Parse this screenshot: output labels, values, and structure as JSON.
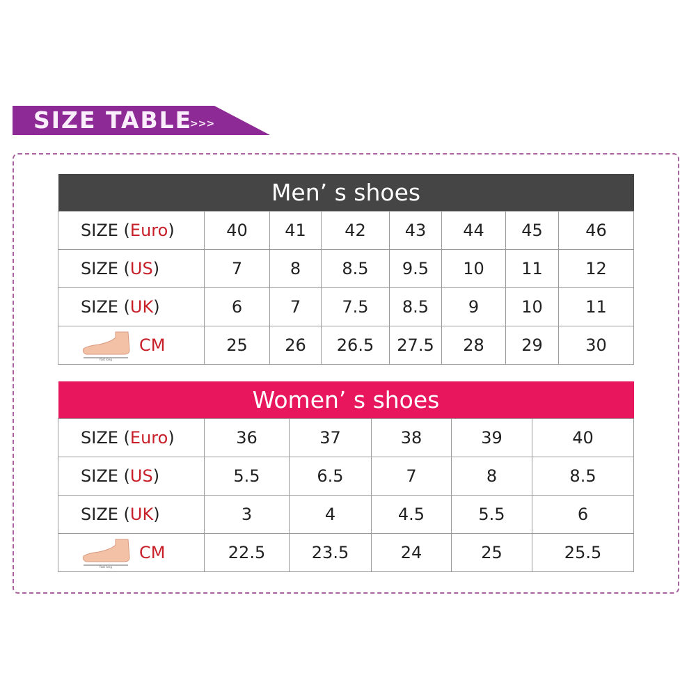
{
  "banner": {
    "title": "SIZE TABLE",
    "arrows": ">>>"
  },
  "colors": {
    "banner": "#8e2a96",
    "men_header": "#454545",
    "women_header": "#e8175d",
    "accent_text": "#c8202a"
  },
  "men": {
    "title": "Men’ s shoes",
    "rows": [
      {
        "prefix": "SIZE (",
        "unit": "Euro",
        "suffix": ")",
        "values": [
          "40",
          "41",
          "42",
          "43",
          "44",
          "45",
          "46"
        ]
      },
      {
        "prefix": "SIZE (",
        "unit": "US",
        "suffix": ")",
        "values": [
          "7",
          "8",
          "8.5",
          "9.5",
          "10",
          "11",
          "12"
        ]
      },
      {
        "prefix": "SIZE (",
        "unit": "UK",
        "suffix": ")",
        "values": [
          "6",
          "7",
          "7.5",
          "8.5",
          "9",
          "10",
          "11"
        ]
      },
      {
        "icon": "foot-length-icon",
        "unit": "CM",
        "values": [
          "25",
          "26",
          "26.5",
          "27.5",
          "28",
          "29",
          "30"
        ]
      }
    ]
  },
  "women": {
    "title": "Women’ s shoes",
    "rows": [
      {
        "prefix": "SIZE (",
        "unit": "Euro",
        "suffix": ")",
        "values": [
          "36",
          "37",
          "38",
          "39",
          "40"
        ]
      },
      {
        "prefix": "SIZE (",
        "unit": "US",
        "suffix": ")",
        "values": [
          "5.5",
          "6.5",
          "7",
          "8",
          "8.5"
        ]
      },
      {
        "prefix": "SIZE (",
        "unit": "UK",
        "suffix": ")",
        "values": [
          "3",
          "4",
          "4.5",
          "5.5",
          "6"
        ]
      },
      {
        "icon": "foot-length-icon",
        "unit": "CM",
        "values": [
          "22.5",
          "23.5",
          "24",
          "25",
          "25.5"
        ]
      }
    ]
  }
}
